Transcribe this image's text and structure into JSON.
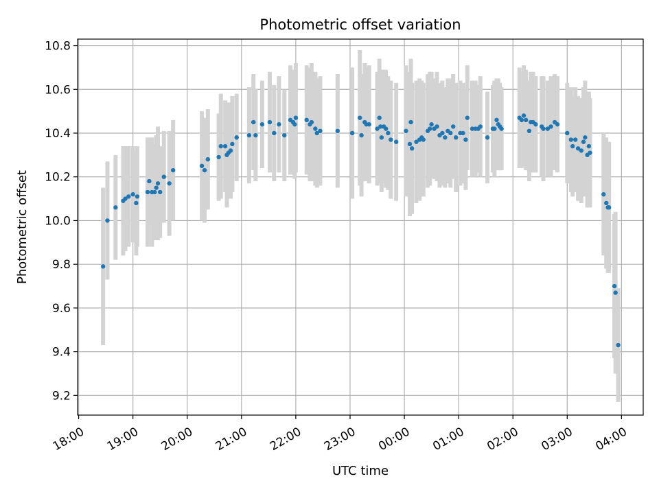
{
  "chart_data": {
    "type": "scatter",
    "title": "Photometric offset variation",
    "xlabel": "UTC time",
    "ylabel": "Photometric offset",
    "x_unit": "hours after 18:00 UTC",
    "xlim": [
      -0.02,
      10.4
    ],
    "ylim": [
      9.11,
      10.83
    ],
    "grid": true,
    "x_ticks": [
      {
        "value": 0,
        "label": "18:00"
      },
      {
        "value": 1,
        "label": "19:00"
      },
      {
        "value": 2,
        "label": "20:00"
      },
      {
        "value": 3,
        "label": "21:00"
      },
      {
        "value": 4,
        "label": "22:00"
      },
      {
        "value": 5,
        "label": "23:00"
      },
      {
        "value": 6,
        "label": "00:00"
      },
      {
        "value": 7,
        "label": "01:00"
      },
      {
        "value": 8,
        "label": "02:00"
      },
      {
        "value": 9,
        "label": "03:00"
      },
      {
        "value": 10,
        "label": "04:00"
      }
    ],
    "y_ticks": [
      {
        "value": 9.2,
        "label": "9.2"
      },
      {
        "value": 9.4,
        "label": "9.4"
      },
      {
        "value": 9.6,
        "label": "9.6"
      },
      {
        "value": 9.8,
        "label": "9.8"
      },
      {
        "value": 10.0,
        "label": "10.0"
      },
      {
        "value": 10.2,
        "label": "10.2"
      },
      {
        "value": 10.4,
        "label": "10.4"
      },
      {
        "value": 10.6,
        "label": "10.6"
      },
      {
        "value": 10.8,
        "label": "10.8"
      }
    ],
    "colors": {
      "marker": "#1f77b4",
      "errorbar": "#d3d3d3",
      "grid": "#b0b0b0"
    },
    "series": [
      {
        "name": "photometric offset",
        "points": [
          {
            "x": 0.45,
            "y": 9.79,
            "err": 0.36
          },
          {
            "x": 0.53,
            "y": 10.0,
            "err": 0.27
          },
          {
            "x": 0.68,
            "y": 10.06,
            "err": 0.24
          },
          {
            "x": 0.82,
            "y": 10.09,
            "err": 0.25
          },
          {
            "x": 0.86,
            "y": 10.1,
            "err": 0.24
          },
          {
            "x": 0.92,
            "y": 10.11,
            "err": 0.23
          },
          {
            "x": 1.0,
            "y": 10.12,
            "err": 0.22
          },
          {
            "x": 1.06,
            "y": 10.08,
            "err": 0.24
          },
          {
            "x": 1.08,
            "y": 10.11,
            "err": 0.23
          },
          {
            "x": 1.27,
            "y": 10.13,
            "err": 0.25
          },
          {
            "x": 1.3,
            "y": 10.18,
            "err": 0.2
          },
          {
            "x": 1.35,
            "y": 10.13,
            "err": 0.25
          },
          {
            "x": 1.4,
            "y": 10.13,
            "err": 0.22
          },
          {
            "x": 1.43,
            "y": 10.15,
            "err": 0.24
          },
          {
            "x": 1.46,
            "y": 10.17,
            "err": 0.26
          },
          {
            "x": 1.5,
            "y": 10.13,
            "err": 0.21
          },
          {
            "x": 1.57,
            "y": 10.2,
            "err": 0.21
          },
          {
            "x": 1.67,
            "y": 10.17,
            "err": 0.24
          },
          {
            "x": 1.74,
            "y": 10.23,
            "err": 0.23
          },
          {
            "x": 2.27,
            "y": 10.25,
            "err": 0.25
          },
          {
            "x": 2.32,
            "y": 10.23,
            "err": 0.24
          },
          {
            "x": 2.38,
            "y": 10.28,
            "err": 0.23
          },
          {
            "x": 2.58,
            "y": 10.29,
            "err": 0.2
          },
          {
            "x": 2.62,
            "y": 10.34,
            "err": 0.24
          },
          {
            "x": 2.7,
            "y": 10.34,
            "err": 0.21
          },
          {
            "x": 2.73,
            "y": 10.3,
            "err": 0.24
          },
          {
            "x": 2.76,
            "y": 10.31,
            "err": 0.2
          },
          {
            "x": 2.8,
            "y": 10.32,
            "err": 0.22
          },
          {
            "x": 2.83,
            "y": 10.35,
            "err": 0.22
          },
          {
            "x": 2.91,
            "y": 10.38,
            "err": 0.2
          },
          {
            "x": 3.14,
            "y": 10.39,
            "err": 0.22
          },
          {
            "x": 3.22,
            "y": 10.45,
            "err": 0.22
          },
          {
            "x": 3.26,
            "y": 10.39,
            "err": 0.21
          },
          {
            "x": 3.38,
            "y": 10.44,
            "err": 0.2
          },
          {
            "x": 3.52,
            "y": 10.45,
            "err": 0.23
          },
          {
            "x": 3.6,
            "y": 10.4,
            "err": 0.22
          },
          {
            "x": 3.69,
            "y": 10.44,
            "err": 0.22
          },
          {
            "x": 3.79,
            "y": 10.39,
            "err": 0.21
          },
          {
            "x": 3.9,
            "y": 10.46,
            "err": 0.25
          },
          {
            "x": 3.95,
            "y": 10.45,
            "err": 0.24
          },
          {
            "x": 3.98,
            "y": 10.44,
            "err": 0.25
          },
          {
            "x": 4.0,
            "y": 10.47,
            "err": 0.25
          },
          {
            "x": 4.2,
            "y": 10.46,
            "err": 0.25
          },
          {
            "x": 4.26,
            "y": 10.44,
            "err": 0.26
          },
          {
            "x": 4.29,
            "y": 10.45,
            "err": 0.27
          },
          {
            "x": 4.36,
            "y": 10.42,
            "err": 0.26
          },
          {
            "x": 4.39,
            "y": 10.4,
            "err": 0.25
          },
          {
            "x": 4.45,
            "y": 10.41,
            "err": 0.25
          },
          {
            "x": 4.77,
            "y": 10.41,
            "err": 0.26
          },
          {
            "x": 5.04,
            "y": 10.4,
            "err": 0.3
          },
          {
            "x": 5.18,
            "y": 10.47,
            "err": 0.31
          },
          {
            "x": 5.21,
            "y": 10.39,
            "err": 0.28
          },
          {
            "x": 5.27,
            "y": 10.45,
            "err": 0.27
          },
          {
            "x": 5.3,
            "y": 10.44,
            "err": 0.26
          },
          {
            "x": 5.35,
            "y": 10.44,
            "err": 0.27
          },
          {
            "x": 5.5,
            "y": 10.42,
            "err": 0.26
          },
          {
            "x": 5.54,
            "y": 10.47,
            "err": 0.27
          },
          {
            "x": 5.56,
            "y": 10.43,
            "err": 0.26
          },
          {
            "x": 5.58,
            "y": 10.38,
            "err": 0.25
          },
          {
            "x": 5.62,
            "y": 10.43,
            "err": 0.26
          },
          {
            "x": 5.66,
            "y": 10.42,
            "err": 0.27
          },
          {
            "x": 5.7,
            "y": 10.4,
            "err": 0.26
          },
          {
            "x": 5.75,
            "y": 10.37,
            "err": 0.27
          },
          {
            "x": 5.85,
            "y": 10.36,
            "err": 0.27
          },
          {
            "x": 6.03,
            "y": 10.41,
            "err": 0.3
          },
          {
            "x": 6.1,
            "y": 10.35,
            "err": 0.33
          },
          {
            "x": 6.12,
            "y": 10.45,
            "err": 0.29
          },
          {
            "x": 6.14,
            "y": 10.33,
            "err": 0.3
          },
          {
            "x": 6.22,
            "y": 10.36,
            "err": 0.28
          },
          {
            "x": 6.28,
            "y": 10.37,
            "err": 0.28
          },
          {
            "x": 6.32,
            "y": 10.38,
            "err": 0.26
          },
          {
            "x": 6.35,
            "y": 10.37,
            "err": 0.26
          },
          {
            "x": 6.43,
            "y": 10.41,
            "err": 0.26
          },
          {
            "x": 6.47,
            "y": 10.42,
            "err": 0.26
          },
          {
            "x": 6.5,
            "y": 10.44,
            "err": 0.24
          },
          {
            "x": 6.55,
            "y": 10.42,
            "err": 0.23
          },
          {
            "x": 6.6,
            "y": 10.43,
            "err": 0.25
          },
          {
            "x": 6.65,
            "y": 10.39,
            "err": 0.24
          },
          {
            "x": 6.7,
            "y": 10.4,
            "err": 0.24
          },
          {
            "x": 6.75,
            "y": 10.38,
            "err": 0.23
          },
          {
            "x": 6.8,
            "y": 10.41,
            "err": 0.24
          },
          {
            "x": 6.85,
            "y": 10.4,
            "err": 0.25
          },
          {
            "x": 6.9,
            "y": 10.43,
            "err": 0.24
          },
          {
            "x": 6.95,
            "y": 10.38,
            "err": 0.25
          },
          {
            "x": 7.03,
            "y": 10.4,
            "err": 0.24
          },
          {
            "x": 7.08,
            "y": 10.4,
            "err": 0.23
          },
          {
            "x": 7.13,
            "y": 10.37,
            "err": 0.23
          },
          {
            "x": 7.16,
            "y": 10.47,
            "err": 0.24
          },
          {
            "x": 7.25,
            "y": 10.42,
            "err": 0.22
          },
          {
            "x": 7.31,
            "y": 10.42,
            "err": 0.22
          },
          {
            "x": 7.36,
            "y": 10.42,
            "err": 0.2
          },
          {
            "x": 7.4,
            "y": 10.43,
            "err": 0.23
          },
          {
            "x": 7.53,
            "y": 10.38,
            "err": 0.21
          },
          {
            "x": 7.63,
            "y": 10.42,
            "err": 0.2
          },
          {
            "x": 7.66,
            "y": 10.42,
            "err": 0.22
          },
          {
            "x": 7.7,
            "y": 10.46,
            "err": 0.19
          },
          {
            "x": 7.73,
            "y": 10.44,
            "err": 0.21
          },
          {
            "x": 7.76,
            "y": 10.43,
            "err": 0.2
          },
          {
            "x": 7.79,
            "y": 10.42,
            "err": 0.19
          },
          {
            "x": 8.12,
            "y": 10.47,
            "err": 0.23
          },
          {
            "x": 8.16,
            "y": 10.46,
            "err": 0.22
          },
          {
            "x": 8.2,
            "y": 10.48,
            "err": 0.23
          },
          {
            "x": 8.24,
            "y": 10.46,
            "err": 0.23
          },
          {
            "x": 8.3,
            "y": 10.41,
            "err": 0.23
          },
          {
            "x": 8.33,
            "y": 10.45,
            "err": 0.23
          },
          {
            "x": 8.37,
            "y": 10.45,
            "err": 0.23
          },
          {
            "x": 8.42,
            "y": 10.44,
            "err": 0.22
          },
          {
            "x": 8.53,
            "y": 10.43,
            "err": 0.23
          },
          {
            "x": 8.56,
            "y": 10.42,
            "err": 0.24
          },
          {
            "x": 8.64,
            "y": 10.42,
            "err": 0.22
          },
          {
            "x": 8.7,
            "y": 10.43,
            "err": 0.23
          },
          {
            "x": 8.77,
            "y": 10.45,
            "err": 0.22
          },
          {
            "x": 8.82,
            "y": 10.44,
            "err": 0.22
          },
          {
            "x": 9.0,
            "y": 10.4,
            "err": 0.23
          },
          {
            "x": 9.07,
            "y": 10.37,
            "err": 0.24
          },
          {
            "x": 9.1,
            "y": 10.34,
            "err": 0.23
          },
          {
            "x": 9.15,
            "y": 10.37,
            "err": 0.24
          },
          {
            "x": 9.2,
            "y": 10.33,
            "err": 0.24
          },
          {
            "x": 9.26,
            "y": 10.32,
            "err": 0.24
          },
          {
            "x": 9.3,
            "y": 10.36,
            "err": 0.25
          },
          {
            "x": 9.33,
            "y": 10.38,
            "err": 0.26
          },
          {
            "x": 9.37,
            "y": 10.3,
            "err": 0.24
          },
          {
            "x": 9.4,
            "y": 10.34,
            "err": 0.25
          },
          {
            "x": 9.42,
            "y": 10.31,
            "err": 0.25
          },
          {
            "x": 9.67,
            "y": 10.12,
            "err": 0.28
          },
          {
            "x": 9.72,
            "y": 10.08,
            "err": 0.3
          },
          {
            "x": 9.75,
            "y": 10.06,
            "err": 0.3
          },
          {
            "x": 9.77,
            "y": 10.06,
            "err": 0.3
          },
          {
            "x": 9.87,
            "y": 9.7,
            "err": 0.33
          },
          {
            "x": 9.89,
            "y": 9.67,
            "err": 0.37
          },
          {
            "x": 9.94,
            "y": 9.43,
            "err": 0.26
          }
        ]
      }
    ]
  }
}
